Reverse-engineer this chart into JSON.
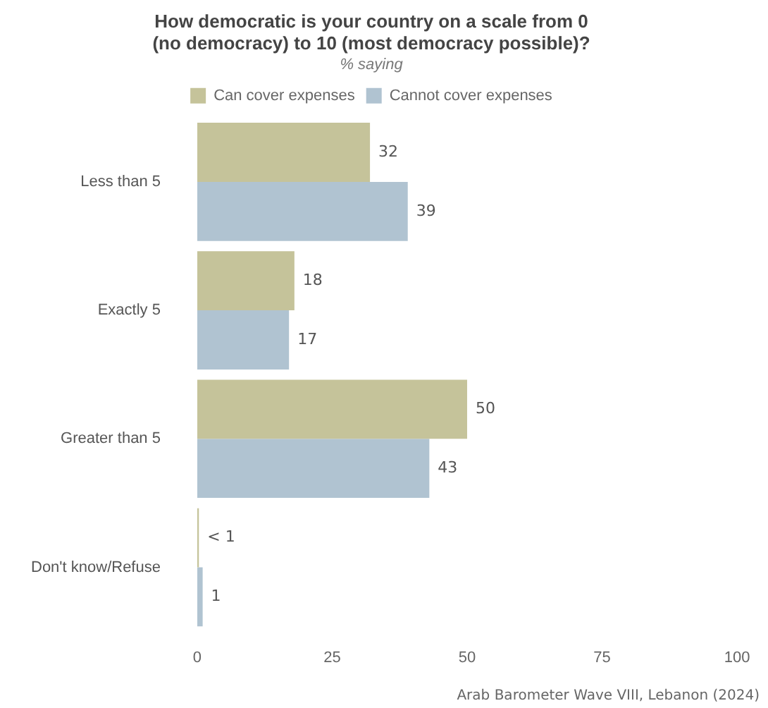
{
  "chart_data": {
    "type": "bar",
    "orientation": "horizontal",
    "title": "How democratic is your country on a scale from 0\n(no democracy) to 10 (most democracy possible)?",
    "subtitle": "% saying",
    "categories": [
      "Less than 5",
      "Exactly 5",
      "Greater than 5",
      "Don't know/Refuse"
    ],
    "series": [
      {
        "name": "Can cover expenses",
        "color": "#c5c39a",
        "values": [
          32,
          18,
          50,
          0.3
        ],
        "value_labels": [
          "32",
          "18",
          "50",
          "< 1"
        ]
      },
      {
        "name": "Cannot cover expenses",
        "color": "#b0c3d1",
        "values": [
          39,
          17,
          43,
          1
        ],
        "value_labels": [
          "39",
          "17",
          "43",
          "1"
        ]
      }
    ],
    "xlim": [
      0,
      100
    ],
    "xticks": [
      0,
      25,
      50,
      75,
      100
    ],
    "grid": false,
    "legend": "top",
    "annotations": [
      "Arab Barometer Wave VIII, Lebanon (2024)"
    ]
  }
}
